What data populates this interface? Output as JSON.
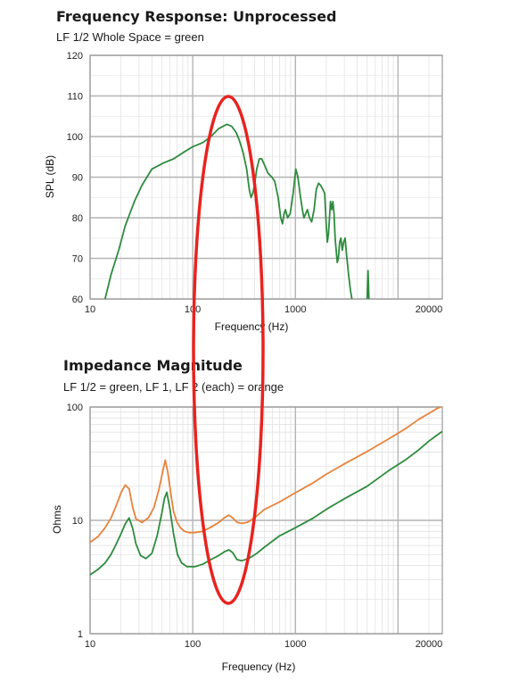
{
  "chart_data": [
    {
      "type": "line",
      "title": "Frequency Response: Unprocessed",
      "subtitle": "LF 1/2 Whole Space = green",
      "xlabel": "Frequency (Hz)",
      "ylabel": "SPL (dB)",
      "xscale": "log",
      "xlim": [
        10,
        27000
      ],
      "ylim": [
        60,
        120
      ],
      "x_ticks": [
        "10",
        "100",
        "1000",
        "20000"
      ],
      "y_ticks": [
        "60",
        "70",
        "80",
        "90",
        "100",
        "110",
        "120"
      ],
      "grid": true,
      "series": [
        {
          "color": "#2e8b3e",
          "points": [
            [
              14,
              60
            ],
            [
              16,
              66
            ],
            [
              19,
              72
            ],
            [
              22,
              78
            ],
            [
              27,
              84
            ],
            [
              32,
              88
            ],
            [
              40,
              92
            ],
            [
              52,
              93.5
            ],
            [
              65,
              94.5
            ],
            [
              80,
              96
            ],
            [
              100,
              97.5
            ],
            [
              125,
              98.5
            ],
            [
              150,
              100
            ],
            [
              180,
              102
            ],
            [
              215,
              103
            ],
            [
              240,
              102.5
            ],
            [
              265,
              101
            ],
            [
              285,
              99
            ],
            [
              310,
              96
            ],
            [
              335,
              92
            ],
            [
              355,
              87
            ],
            [
              370,
              85
            ],
            [
              385,
              86
            ],
            [
              400,
              88
            ],
            [
              420,
              92
            ],
            [
              445,
              94.5
            ],
            [
              470,
              94.5
            ],
            [
              500,
              93
            ],
            [
              540,
              91
            ],
            [
              590,
              90
            ],
            [
              630,
              89
            ],
            [
              680,
              85
            ],
            [
              720,
              80
            ],
            [
              750,
              78.5
            ],
            [
              775,
              81
            ],
            [
              800,
              82
            ],
            [
              840,
              80
            ],
            [
              890,
              81
            ],
            [
              950,
              86
            ],
            [
              1010,
              92
            ],
            [
              1060,
              90
            ],
            [
              1110,
              86
            ],
            [
              1170,
              82
            ],
            [
              1210,
              80
            ],
            [
              1260,
              81
            ],
            [
              1310,
              82
            ],
            [
              1370,
              80
            ],
            [
              1440,
              79
            ],
            [
              1520,
              82
            ],
            [
              1600,
              87
            ],
            [
              1680,
              88.5
            ],
            [
              1760,
              88
            ],
            [
              1850,
              87
            ],
            [
              1930,
              86
            ],
            [
              2000,
              78
            ],
            [
              2050,
              74
            ],
            [
              2100,
              76
            ],
            [
              2150,
              80
            ],
            [
              2200,
              84
            ],
            [
              2260,
              82
            ],
            [
              2320,
              84
            ],
            [
              2380,
              81
            ],
            [
              2440,
              75
            ],
            [
              2500,
              72
            ],
            [
              2560,
              69
            ],
            [
              2620,
              70
            ],
            [
              2700,
              74
            ],
            [
              2780,
              75
            ],
            [
              2860,
              72
            ],
            [
              2950,
              74
            ],
            [
              3050,
              75
            ],
            [
              3150,
              71
            ],
            [
              3300,
              66
            ],
            [
              3450,
              62
            ],
            [
              3550,
              60
            ]
          ]
        },
        {
          "color": "#2e8b3e",
          "points": [
            [
              5000,
              60
            ],
            [
              5050,
              64
            ],
            [
              5100,
              67
            ],
            [
              5160,
              63
            ],
            [
              5200,
              60
            ]
          ]
        }
      ]
    },
    {
      "type": "line",
      "title": "Impedance Magnitude",
      "subtitle": "LF 1/2 = green, LF 1, LF 2 (each) = orange",
      "xlabel": "Frequency (Hz)",
      "ylabel": "Ohms",
      "xscale": "log",
      "yscale": "log",
      "xlim": [
        10,
        27000
      ],
      "ylim": [
        1,
        100
      ],
      "x_ticks": [
        "10",
        "100",
        "1000",
        "20000"
      ],
      "y_ticks": [
        "1",
        "10",
        "100"
      ],
      "grid": true,
      "series": [
        {
          "color": "#e8823a",
          "points": [
            [
              10,
              6.4
            ],
            [
              12,
              7.2
            ],
            [
              14,
              8.6
            ],
            [
              16,
              10.5
            ],
            [
              18,
              13.5
            ],
            [
              20,
              17.5
            ],
            [
              22,
              20.5
            ],
            [
              24,
              19
            ],
            [
              26,
              13
            ],
            [
              28,
              10.3
            ],
            [
              32,
              9.6
            ],
            [
              37,
              10.5
            ],
            [
              42,
              13
            ],
            [
              47,
              19
            ],
            [
              51,
              27
            ],
            [
              54,
              34
            ],
            [
              57,
              27
            ],
            [
              61,
              17.5
            ],
            [
              65,
              12
            ],
            [
              70,
              9.7
            ],
            [
              76,
              8.6
            ],
            [
              83,
              8
            ],
            [
              92,
              7.8
            ],
            [
              105,
              7.8
            ],
            [
              125,
              8
            ],
            [
              150,
              8.7
            ],
            [
              180,
              9.6
            ],
            [
              205,
              10.6
            ],
            [
              225,
              11.1
            ],
            [
              245,
              10.5
            ],
            [
              270,
              9.6
            ],
            [
              300,
              9.4
            ],
            [
              340,
              9.6
            ],
            [
              400,
              10.5
            ],
            [
              500,
              12.5
            ],
            [
              700,
              14.5
            ],
            [
              1000,
              17.5
            ],
            [
              1500,
              21.5
            ],
            [
              2000,
              25.5
            ],
            [
              3000,
              31.5
            ],
            [
              5000,
              40.5
            ],
            [
              8000,
              52
            ],
            [
              12000,
              65
            ],
            [
              16000,
              78
            ],
            [
              20000,
              88
            ],
            [
              24000,
              97
            ],
            [
              26000,
              100
            ]
          ]
        },
        {
          "color": "#2e8b3e",
          "points": [
            [
              10,
              3.3
            ],
            [
              12,
              3.7
            ],
            [
              14,
              4.2
            ],
            [
              16,
              5
            ],
            [
              18,
              6.2
            ],
            [
              20,
              7.6
            ],
            [
              22,
              9.3
            ],
            [
              24,
              10.5
            ],
            [
              26,
              8.5
            ],
            [
              28,
              6.2
            ],
            [
              31,
              4.9
            ],
            [
              35,
              4.6
            ],
            [
              40,
              5.1
            ],
            [
              45,
              7.3
            ],
            [
              50,
              11.6
            ],
            [
              53,
              15.6
            ],
            [
              56,
              17.7
            ],
            [
              60,
              12.5
            ],
            [
              65,
              7.6
            ],
            [
              71,
              5
            ],
            [
              78,
              4.2
            ],
            [
              88,
              3.9
            ],
            [
              105,
              3.9
            ],
            [
              125,
              4.1
            ],
            [
              150,
              4.5
            ],
            [
              180,
              4.9
            ],
            [
              205,
              5.3
            ],
            [
              225,
              5.5
            ],
            [
              245,
              5.2
            ],
            [
              270,
              4.5
            ],
            [
              300,
              4.4
            ],
            [
              350,
              4.6
            ],
            [
              420,
              5.1
            ],
            [
              500,
              5.8
            ],
            [
              700,
              7.3
            ],
            [
              1000,
              8.6
            ],
            [
              1500,
              10.5
            ],
            [
              2000,
              12.5
            ],
            [
              3000,
              15.5
            ],
            [
              5000,
              20
            ],
            [
              8000,
              27.2
            ],
            [
              12000,
              34.5
            ],
            [
              16000,
              42
            ],
            [
              20000,
              50
            ],
            [
              24000,
              56.5
            ],
            [
              27000,
              61
            ]
          ]
        }
      ]
    }
  ],
  "annotation": {
    "color": "#e8231f"
  }
}
